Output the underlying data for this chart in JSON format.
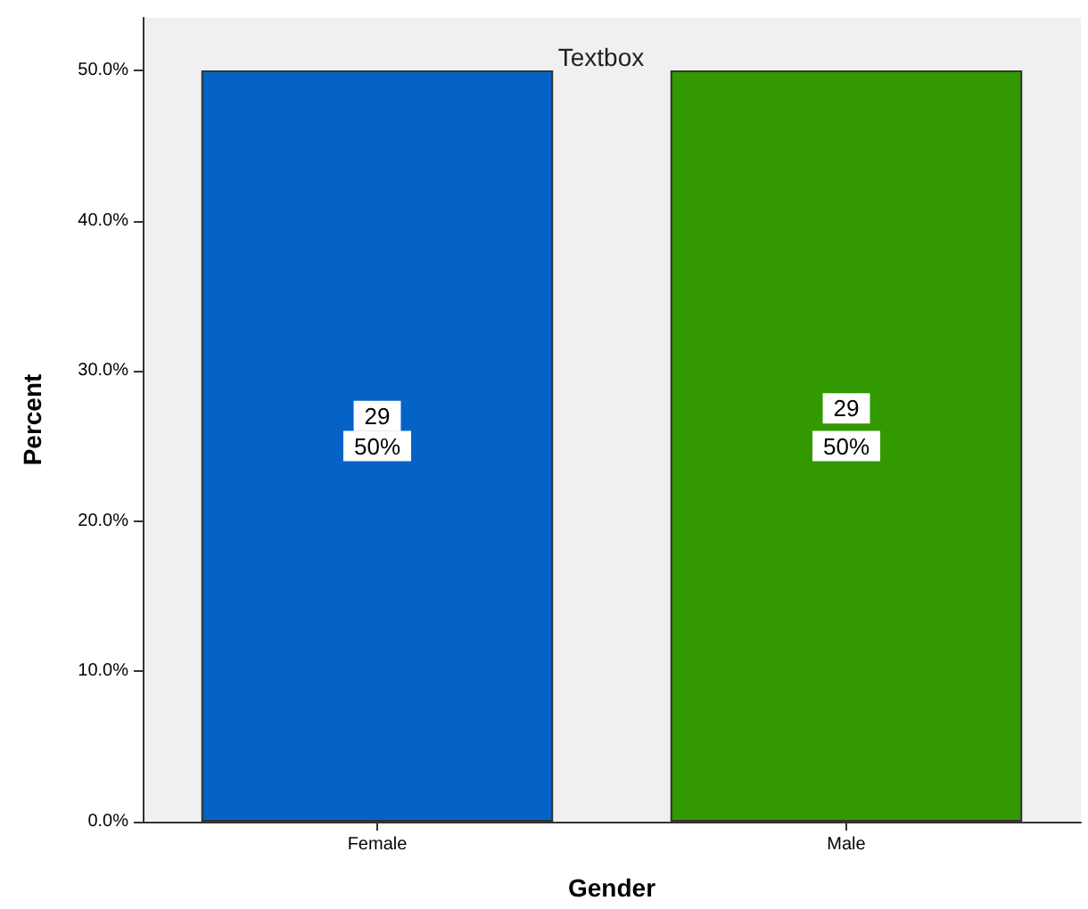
{
  "chart_data": {
    "type": "bar",
    "title": "Textbox",
    "xlabel": "Gender",
    "ylabel": "Percent",
    "categories": [
      "Female",
      "Male"
    ],
    "values": [
      50,
      50
    ],
    "colors": [
      "#0563c8",
      "#339900"
    ],
    "value_labels": [
      "50%",
      "50%"
    ],
    "annotations": [
      {
        "text": "29",
        "x": "Female",
        "y": 27
      },
      {
        "text": "29",
        "x": "Male",
        "y": 27.5
      }
    ],
    "ylim": [
      0,
      53.5
    ],
    "yticks": [
      {
        "value": 0,
        "label": "0.0%"
      },
      {
        "value": 10,
        "label": "10.0%"
      },
      {
        "value": 20,
        "label": "20.0%"
      },
      {
        "value": 30,
        "label": "30.0%"
      },
      {
        "value": 40,
        "label": "40.0%"
      },
      {
        "value": 50,
        "label": "50.0%"
      }
    ],
    "grid": false
  }
}
